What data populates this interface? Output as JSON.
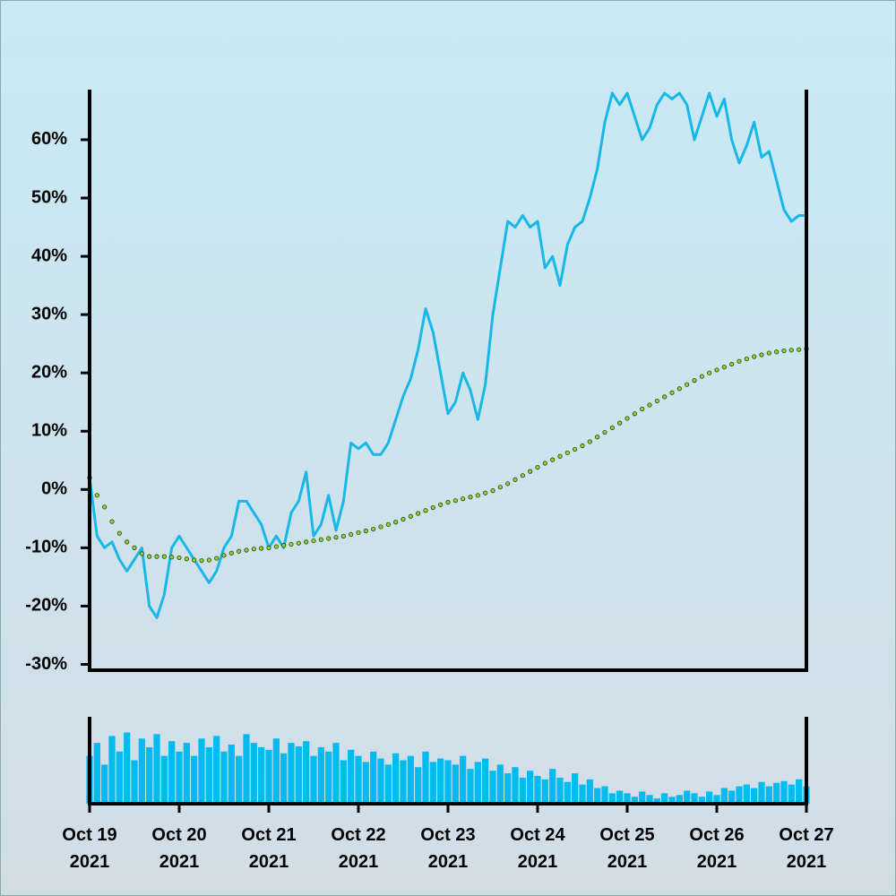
{
  "chart_data": [
    {
      "type": "line",
      "x": [
        0,
        2,
        4,
        6,
        8,
        10,
        12,
        14,
        16,
        18,
        20,
        22,
        24,
        26,
        28,
        30,
        32,
        34,
        36,
        38,
        40,
        42,
        44,
        46,
        48,
        50,
        52,
        54,
        56,
        58,
        60,
        62,
        64,
        66,
        68,
        70,
        72,
        74,
        76,
        78,
        80,
        82,
        84,
        86,
        88,
        90,
        92,
        94,
        96,
        98,
        100,
        102,
        104,
        106,
        108,
        110,
        112,
        114,
        116,
        118,
        120,
        122,
        124,
        126,
        128,
        130,
        132,
        134,
        136,
        138,
        140,
        142,
        144,
        146,
        148,
        150,
        152,
        154,
        156,
        158,
        160,
        162,
        164,
        166,
        168,
        170,
        172,
        174,
        176,
        178,
        180,
        182,
        184,
        186,
        188,
        190,
        192
      ],
      "xlim": [
        0,
        192
      ],
      "ylim": [
        -31,
        68.6
      ],
      "yticks": [
        {
          "value": -30,
          "label": "-30%"
        },
        {
          "value": -20,
          "label": "-20%"
        },
        {
          "value": -10,
          "label": "-10%"
        },
        {
          "value": 0,
          "label": "0%"
        },
        {
          "value": 10,
          "label": "10%"
        },
        {
          "value": 20,
          "label": "20%"
        },
        {
          "value": 30,
          "label": "30%"
        },
        {
          "value": 40,
          "label": "40%"
        },
        {
          "value": 50,
          "label": "50%"
        },
        {
          "value": 60,
          "label": "60%"
        }
      ],
      "series": [
        {
          "color": "#17b7e8",
          "marker": false,
          "values": [
            2,
            -8,
            -10,
            -9,
            -12,
            -14,
            -12,
            -10,
            -20,
            -22,
            -18,
            -10,
            -8,
            -10,
            -12,
            -14,
            -16,
            -14,
            -10,
            -8,
            -2,
            -2,
            -4,
            -6,
            -10,
            -8,
            -10,
            -4,
            -2,
            3,
            -8,
            -6,
            -1,
            -7,
            -2,
            8,
            7,
            8,
            6,
            6,
            8,
            12,
            16,
            19,
            24,
            31,
            27,
            20,
            13,
            15,
            20,
            17,
            12,
            18,
            30,
            38,
            46,
            45,
            47,
            45,
            46,
            38,
            40,
            35,
            42,
            45,
            46,
            50,
            55,
            63,
            68,
            66,
            68,
            64,
            60,
            62,
            66,
            68,
            67,
            68,
            66,
            60,
            64,
            68,
            64,
            67,
            60,
            56,
            59,
            63,
            57,
            58,
            53,
            48,
            46,
            47,
            47
          ]
        },
        {
          "color": "#9acd32",
          "marker": true,
          "values": [
            2,
            -1,
            -3,
            -5.5,
            -7.5,
            -9,
            -10,
            -11,
            -11.5,
            -11.5,
            -11.5,
            -11.6,
            -11.7,
            -11.9,
            -12.1,
            -12.2,
            -12.1,
            -11.8,
            -11.3,
            -10.9,
            -10.6,
            -10.4,
            -10.2,
            -10.1,
            -10,
            -9.8,
            -9.6,
            -9.4,
            -9.2,
            -9,
            -8.8,
            -8.6,
            -8.4,
            -8.2,
            -8,
            -7.7,
            -7.4,
            -7.1,
            -6.8,
            -6.4,
            -6,
            -5.6,
            -5.1,
            -4.6,
            -4.1,
            -3.6,
            -3.1,
            -2.6,
            -2.2,
            -1.9,
            -1.6,
            -1.3,
            -1,
            -0.6,
            -0.2,
            0.4,
            1,
            1.7,
            2.4,
            3.1,
            3.8,
            4.5,
            5.1,
            5.7,
            6.3,
            6.9,
            7.5,
            8.2,
            9,
            9.8,
            10.6,
            11.4,
            12.2,
            13,
            13.8,
            14.5,
            15.2,
            15.9,
            16.6,
            17.3,
            18,
            18.7,
            19.4,
            20,
            20.5,
            21,
            21.5,
            22,
            22.4,
            22.8,
            23.1,
            23.4,
            23.6,
            23.8,
            23.9,
            24,
            24.1
          ]
        }
      ]
    },
    {
      "type": "bar",
      "x": [
        0,
        2,
        4,
        6,
        8,
        10,
        12,
        14,
        16,
        18,
        20,
        22,
        24,
        26,
        28,
        30,
        32,
        34,
        36,
        38,
        40,
        42,
        44,
        46,
        48,
        50,
        52,
        54,
        56,
        58,
        60,
        62,
        64,
        66,
        68,
        70,
        72,
        74,
        76,
        78,
        80,
        82,
        84,
        86,
        88,
        90,
        92,
        94,
        96,
        98,
        100,
        102,
        104,
        106,
        108,
        110,
        112,
        114,
        116,
        118,
        120,
        122,
        124,
        126,
        128,
        130,
        132,
        134,
        136,
        138,
        140,
        142,
        144,
        146,
        148,
        150,
        152,
        154,
        156,
        158,
        160,
        162,
        164,
        166,
        168,
        170,
        172,
        174,
        176,
        178,
        180,
        182,
        184,
        186,
        188,
        190,
        192
      ],
      "xlim": [
        0,
        192
      ],
      "ylim": [
        0,
        100
      ],
      "xticks": [
        {
          "value": 0,
          "label": "Oct 19\n2021"
        },
        {
          "value": 24,
          "label": "Oct 20\n2021"
        },
        {
          "value": 48,
          "label": "Oct 21\n2021"
        },
        {
          "value": 72,
          "label": "Oct 22\n2021"
        },
        {
          "value": 96,
          "label": "Oct 23\n2021"
        },
        {
          "value": 120,
          "label": "Oct 24\n2021"
        },
        {
          "value": 144,
          "label": "Oct 25\n2021"
        },
        {
          "value": 168,
          "label": "Oct 26\n2021"
        },
        {
          "value": 192,
          "label": "Oct 27\n2021"
        }
      ],
      "color": "#00bbf0",
      "values": [
        55,
        70,
        45,
        78,
        60,
        82,
        50,
        75,
        65,
        80,
        55,
        72,
        60,
        70,
        55,
        75,
        65,
        78,
        60,
        68,
        55,
        80,
        70,
        65,
        62,
        75,
        58,
        70,
        66,
        72,
        55,
        65,
        60,
        70,
        50,
        62,
        55,
        48,
        60,
        52,
        45,
        58,
        50,
        55,
        42,
        60,
        48,
        52,
        50,
        45,
        55,
        40,
        48,
        52,
        38,
        45,
        35,
        42,
        30,
        38,
        32,
        28,
        40,
        30,
        25,
        35,
        22,
        28,
        18,
        20,
        12,
        15,
        12,
        8,
        14,
        10,
        6,
        12,
        8,
        10,
        15,
        12,
        8,
        14,
        10,
        18,
        15,
        20,
        22,
        18,
        25,
        20,
        24,
        26,
        22,
        28,
        20
      ]
    }
  ]
}
